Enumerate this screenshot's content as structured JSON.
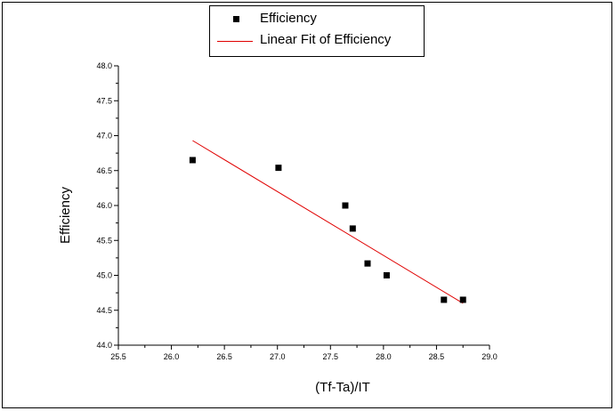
{
  "chart_data": {
    "type": "scatter",
    "xlabel": "(Tf-Ta)/IT",
    "ylabel": "Efficiency",
    "xlim": [
      25.5,
      29.0
    ],
    "ylim": [
      44.0,
      48.0
    ],
    "x_ticks": [
      "25.5",
      "26.0",
      "26.5",
      "27.0",
      "27.5",
      "28.0",
      "28.5",
      "29.0"
    ],
    "y_ticks": [
      "44.0",
      "44.5",
      "45.0",
      "45.5",
      "46.0",
      "46.5",
      "47.0",
      "47.5",
      "48.0"
    ],
    "grid": false,
    "legend": {
      "placement": "top-center",
      "entries": [
        "Efficiency",
        "Linear Fit of Efficiency"
      ]
    },
    "series": [
      {
        "name": "Efficiency",
        "kind": "scatter",
        "color": "#000000",
        "points": [
          {
            "x": 26.2,
            "y": 46.65
          },
          {
            "x": 27.01,
            "y": 46.54
          },
          {
            "x": 27.64,
            "y": 46.0
          },
          {
            "x": 27.71,
            "y": 45.67
          },
          {
            "x": 27.85,
            "y": 45.17
          },
          {
            "x": 28.03,
            "y": 45.0
          },
          {
            "x": 28.57,
            "y": 44.65
          },
          {
            "x": 28.75,
            "y": 44.65
          }
        ]
      },
      {
        "name": "Linear Fit of Efficiency",
        "kind": "line",
        "color": "#e00000",
        "points": [
          {
            "x": 26.2,
            "y": 46.93
          },
          {
            "x": 28.75,
            "y": 44.6
          }
        ]
      }
    ]
  }
}
